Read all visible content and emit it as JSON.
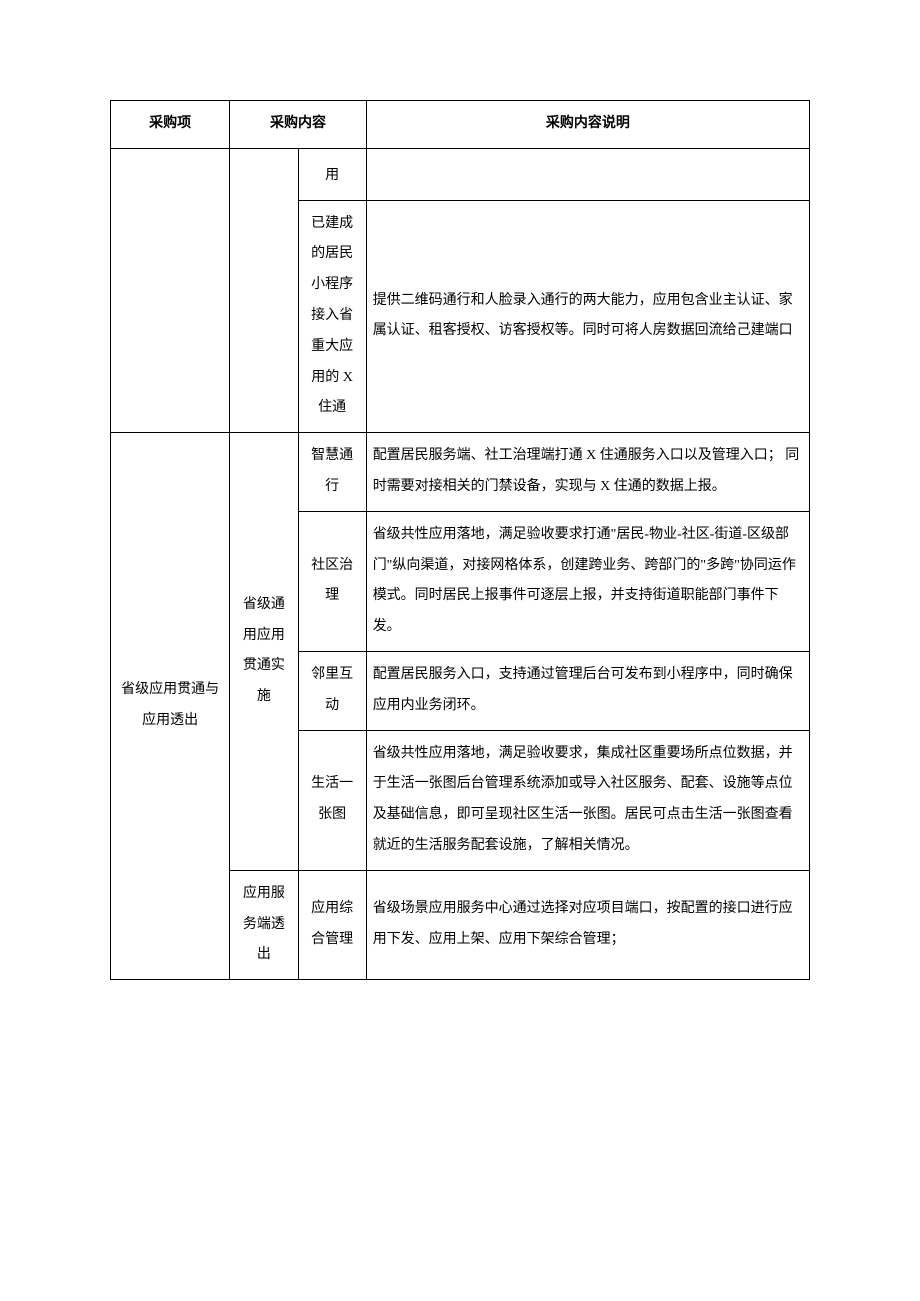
{
  "table": {
    "headers": {
      "h1": "采购项",
      "h2": "采购内容",
      "h3": "采购内容说明"
    },
    "colors": {
      "border": "#000000",
      "background": "#ffffff",
      "text": "#000000"
    },
    "font": {
      "size_pt": 10.5,
      "family": "SimSun",
      "line_height": 2.2
    },
    "column_widths_pct": [
      14,
      16,
      18,
      52
    ],
    "rows": {
      "r1_c3": "用",
      "r2_c3": "已建成的居民小程序接入省重大应用的 X 住通",
      "r2_c4": "提供二维码通行和人脸录入通行的两大能力，应用包含业主认证、家属认证、租客授权、访客授权等。同时可将人房数据回流给己建端口",
      "group1_c1": "省级应用贯通与应用透出",
      "group1_c2a": "省级通用应用贯通实施",
      "r3_c3": "智慧通行",
      "r3_c4": "配置居民服务端、社工治理端打通 X 住通服务入口以及管理入口；\n同时需要对接相关的门禁设备，实现与 X 住通的数据上报。",
      "r4_c3": "社区治理",
      "r4_c4": "省级共性应用落地，满足验收要求打通\"居民-物业-社区-街道-区级部门\"纵向渠道，对接网格体系，创建跨业务、跨部门的\"多跨\"协同运作模式。同时居民上报事件可逐层上报，并支持街道职能部门事件下发。",
      "r5_c3": "邻里互动",
      "r5_c4": "配置居民服务入口，支持通过管理后台可发布到小程序中，同时确保应用内业务闭环。",
      "r6_c3": "生活一张图",
      "r6_c4": "省级共性应用落地，满足验收要求，集成社区重要场所点位数据，并于生活一张图后台管理系统添加或导入社区服务、配套、设施等点位及基础信息，即可呈现社区生活一张图。居民可点击生活一张图查看就近的生活服务配套设施，了解相关情况。",
      "group1_c2b": "应用服务端透出",
      "r7_c3": "应用综合管理",
      "r7_c4": "省级场景应用服务中心通过选择对应项目端口，按配置的接口进行应用下发、应用上架、应用下架综合管理；"
    }
  }
}
